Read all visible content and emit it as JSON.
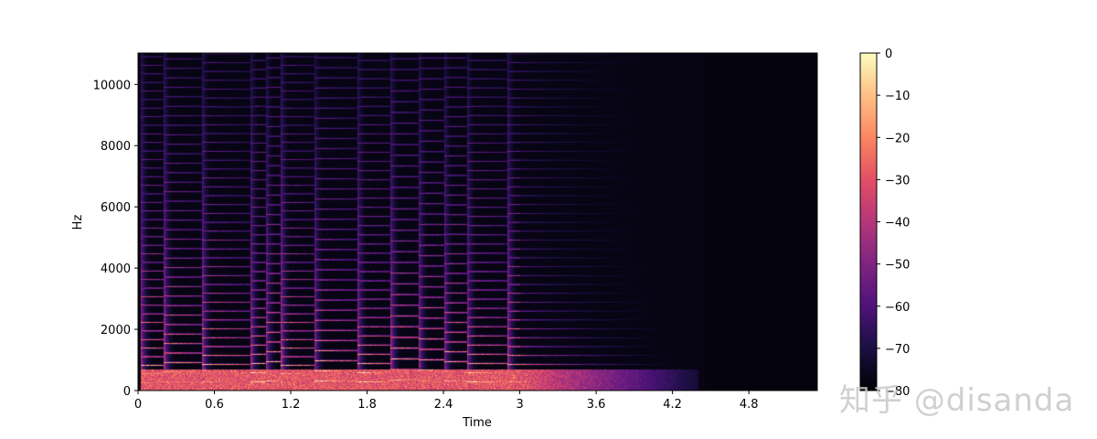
{
  "chart_data": {
    "type": "heatmap",
    "title": "",
    "xlabel": "Time",
    "ylabel": "Hz",
    "xlim": [
      0,
      4.45
    ],
    "ylim": [
      0,
      11025
    ],
    "x_ticks": [
      0,
      0.6,
      1.2,
      1.8,
      2.4,
      3,
      3.6,
      4.2,
      4.8
    ],
    "x_tick_labels": [
      "0",
      "0.6",
      "1.2",
      "1.8",
      "2.4",
      "3",
      "3.6",
      "4.2",
      "4.8"
    ],
    "y_ticks": [
      0,
      2000,
      4000,
      6000,
      8000,
      10000
    ],
    "y_tick_labels": [
      "0",
      "2000",
      "4000",
      "6000",
      "8000",
      "10000"
    ],
    "colorbar": {
      "colormap": "magma",
      "range": [
        -80,
        0
      ],
      "ticks": [
        0,
        -10,
        -20,
        -30,
        -40,
        -50,
        -60,
        -70,
        -80
      ],
      "tick_labels": [
        "0",
        "−10",
        "−20",
        "−30",
        "−40",
        "−50",
        "−60",
        "−70",
        "−80"
      ]
    },
    "onsets": [
      {
        "t": 0.02,
        "f0": 280,
        "dur": 0.16
      },
      {
        "t": 0.2,
        "f0": 310,
        "dur": 0.2
      },
      {
        "t": 0.5,
        "f0": 290,
        "dur": 0.25
      },
      {
        "t": 0.88,
        "f0": 300,
        "dur": 0.12
      },
      {
        "t": 1.0,
        "f0": 320,
        "dur": 0.12
      },
      {
        "t": 1.12,
        "f0": 280,
        "dur": 0.1
      },
      {
        "t": 1.38,
        "f0": 330,
        "dur": 0.3
      },
      {
        "t": 1.72,
        "f0": 300,
        "dur": 0.25
      },
      {
        "t": 1.98,
        "f0": 350,
        "dur": 0.2
      },
      {
        "t": 2.2,
        "f0": 340,
        "dur": 0.14
      },
      {
        "t": 2.4,
        "f0": 320,
        "dur": 0.14
      },
      {
        "t": 2.58,
        "f0": 300,
        "dur": 0.2
      },
      {
        "t": 2.9,
        "f0": 290,
        "dur": 0.25
      }
    ],
    "decay_end_time": 4.4
  },
  "watermark": {
    "text": "知乎 @disanda",
    "icon": "zhihu-logo"
  }
}
